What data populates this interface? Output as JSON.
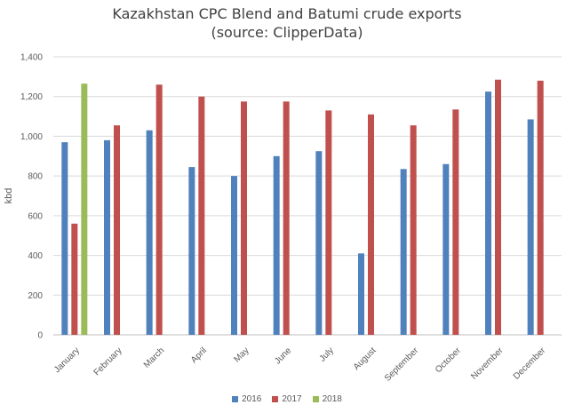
{
  "chart_data": {
    "type": "bar",
    "title": "Kazakhstan CPC Blend and Batumi crude exports",
    "subtitle": "(source: ClipperData)",
    "ylabel": "kbd",
    "xlabel": "",
    "ylim": [
      0,
      1400
    ],
    "yticks": [
      "0",
      "200",
      "400",
      "600",
      "800",
      "1,000",
      "1,200",
      "1,400"
    ],
    "ytick_values": [
      0,
      200,
      400,
      600,
      800,
      1000,
      1200,
      1400
    ],
    "grid": true,
    "legend_position": "bottom",
    "categories": [
      "January",
      "February",
      "March",
      "April",
      "May",
      "June",
      "July",
      "August",
      "September",
      "October",
      "November",
      "December"
    ],
    "series": [
      {
        "name": "2016",
        "color": "#4f81bd",
        "values": [
          970,
          980,
          1030,
          845,
          800,
          900,
          925,
          410,
          835,
          860,
          1225,
          1085
        ]
      },
      {
        "name": "2017",
        "color": "#c0504d",
        "values": [
          560,
          1055,
          1260,
          1200,
          1175,
          1175,
          1130,
          1110,
          1055,
          1135,
          1285,
          1280
        ]
      },
      {
        "name": "2018",
        "color": "#9bbb59",
        "values": [
          1265,
          null,
          null,
          null,
          null,
          null,
          null,
          null,
          null,
          null,
          null,
          null
        ]
      }
    ]
  }
}
